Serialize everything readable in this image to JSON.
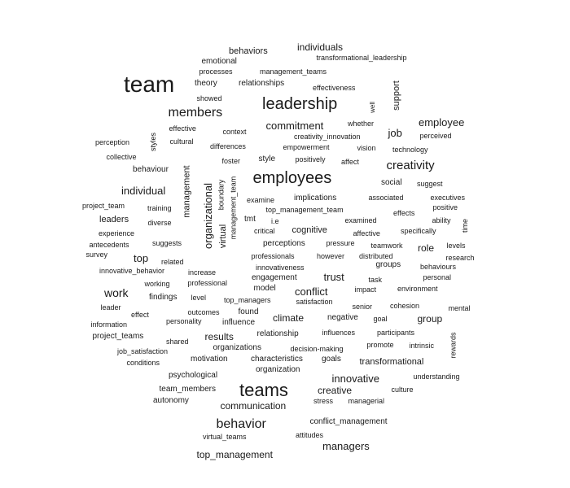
{
  "text_color": "#1a1a1a",
  "background": "#ffffff",
  "words": [
    "behaviors",
    "individuals",
    "transformational_leadership",
    "emotional",
    "processes",
    "management_teams",
    "team",
    "theory",
    "relationships",
    "effectiveness",
    "showed",
    "support",
    "well",
    "leadership",
    "members",
    "whether",
    "commitment",
    "job",
    "employee",
    "perception",
    "effective",
    "context",
    "creativity_innovation",
    "perceived",
    "styles",
    "cultural",
    "differences",
    "empowerment",
    "vision",
    "technology",
    "collective",
    "foster",
    "style",
    "positively",
    "affect",
    "creativity",
    "behaviour",
    "employees",
    "management",
    "boundary",
    "suggest",
    "social",
    "individual",
    "management_team",
    "examine",
    "implications",
    "associated",
    "executives",
    "project_team",
    "training",
    "top_management_team",
    "positive",
    "effects",
    "leaders",
    "tmt",
    "i.e",
    "examined",
    "ability",
    "time",
    "diverse",
    "organizational",
    "virtual",
    "critical",
    "cognitive",
    "affective",
    "specifically",
    "experience",
    "antecedents",
    "suggests",
    "perceptions",
    "pressure",
    "teamwork",
    "levels",
    "top",
    "survey",
    "professionals",
    "however",
    "distributed",
    "role",
    "research",
    "related",
    "innovativeness",
    "groups",
    "behaviours",
    "innovative_behavior",
    "increase",
    "engagement",
    "trust",
    "task",
    "personal",
    "working",
    "professional",
    "model",
    "conflict",
    "impact",
    "environment",
    "work",
    "findings",
    "level",
    "satisfaction",
    "cohesion",
    "leader",
    "top_managers",
    "senior",
    "mental",
    "effect",
    "outcomes",
    "found",
    "climate",
    "negative",
    "goal",
    "group",
    "information",
    "personality",
    "influence",
    "project_teams",
    "results",
    "relationship",
    "influences",
    "participants",
    "shared",
    "promote",
    "intrinsic",
    "rewards",
    "job_satisfaction",
    "organizations",
    "decision-making",
    "conditions",
    "motivation",
    "characteristics",
    "goals",
    "transformational",
    "organization",
    "psychological",
    "innovative",
    "understanding",
    "team_members",
    "teams",
    "creative",
    "culture",
    "autonomy",
    "communication",
    "stress",
    "managerial",
    "behavior",
    "conflict_management",
    "virtual_teams",
    "attitudes",
    "managers",
    "top_management"
  ]
}
